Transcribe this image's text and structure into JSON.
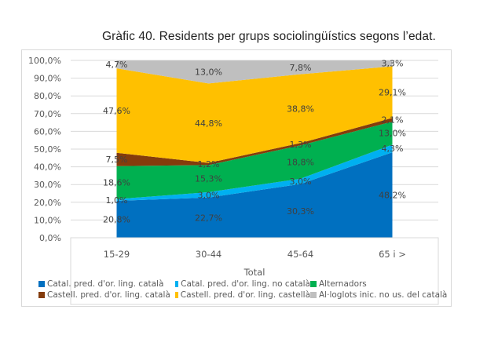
{
  "chart_data": {
    "type": "area",
    "stacked": true,
    "title": "Gràfic 40. Residents per grups sociolingüístics segons l’edat.",
    "xlabel": "Total",
    "ylabel": "",
    "categories": [
      "15-29",
      "30-44",
      "45-64",
      "65 i >"
    ],
    "ylim": [
      0,
      100
    ],
    "yticks": [
      "0,0%",
      "10,0%",
      "20,0%",
      "30,0%",
      "40,0%",
      "50,0%",
      "60,0%",
      "70,0%",
      "80,0%",
      "90,0%",
      "100,0%"
    ],
    "grid": true,
    "legend_position": "bottom",
    "series": [
      {
        "name": "Catal. pred. d'or. ling. català",
        "color": "#0070C0",
        "values": [
          20.8,
          22.7,
          30.3,
          48.2
        ],
        "labels": [
          "20,8%",
          "22,7%",
          "30,3%",
          "48,2%"
        ]
      },
      {
        "name": "Catal. pred. d'or. ling. no català",
        "color": "#00B0F0",
        "values": [
          1.0,
          3.0,
          3.0,
          4.3
        ],
        "labels": [
          "1,0%",
          "3,0%",
          "3,0%",
          "4,3%"
        ]
      },
      {
        "name": "Alternadors",
        "color": "#00B050",
        "values": [
          18.6,
          15.3,
          18.8,
          13.0
        ],
        "labels": [
          "18,6%",
          "15,3%",
          "18,8%",
          "13,0%"
        ]
      },
      {
        "name": "Castell. pred. d'or. ling. català",
        "color": "#843C0C",
        "values": [
          7.5,
          1.2,
          1.3,
          2.1
        ],
        "labels": [
          "7,5%",
          "1,2%",
          "1,3%",
          "2,1%"
        ]
      },
      {
        "name": "Castell. pred. d'or. ling. castellà",
        "color": "#FFC000",
        "values": [
          47.6,
          44.8,
          38.8,
          29.1
        ],
        "labels": [
          "47,6%",
          "44,8%",
          "38,8%",
          "29,1%"
        ]
      },
      {
        "name": "Al·loglots inic. no us. del català",
        "color": "#BFBFBF",
        "values": [
          4.7,
          13.0,
          7.8,
          3.3
        ],
        "labels": [
          "4,7%",
          "13,0%",
          "7,8%",
          "3,3%"
        ]
      }
    ]
  }
}
